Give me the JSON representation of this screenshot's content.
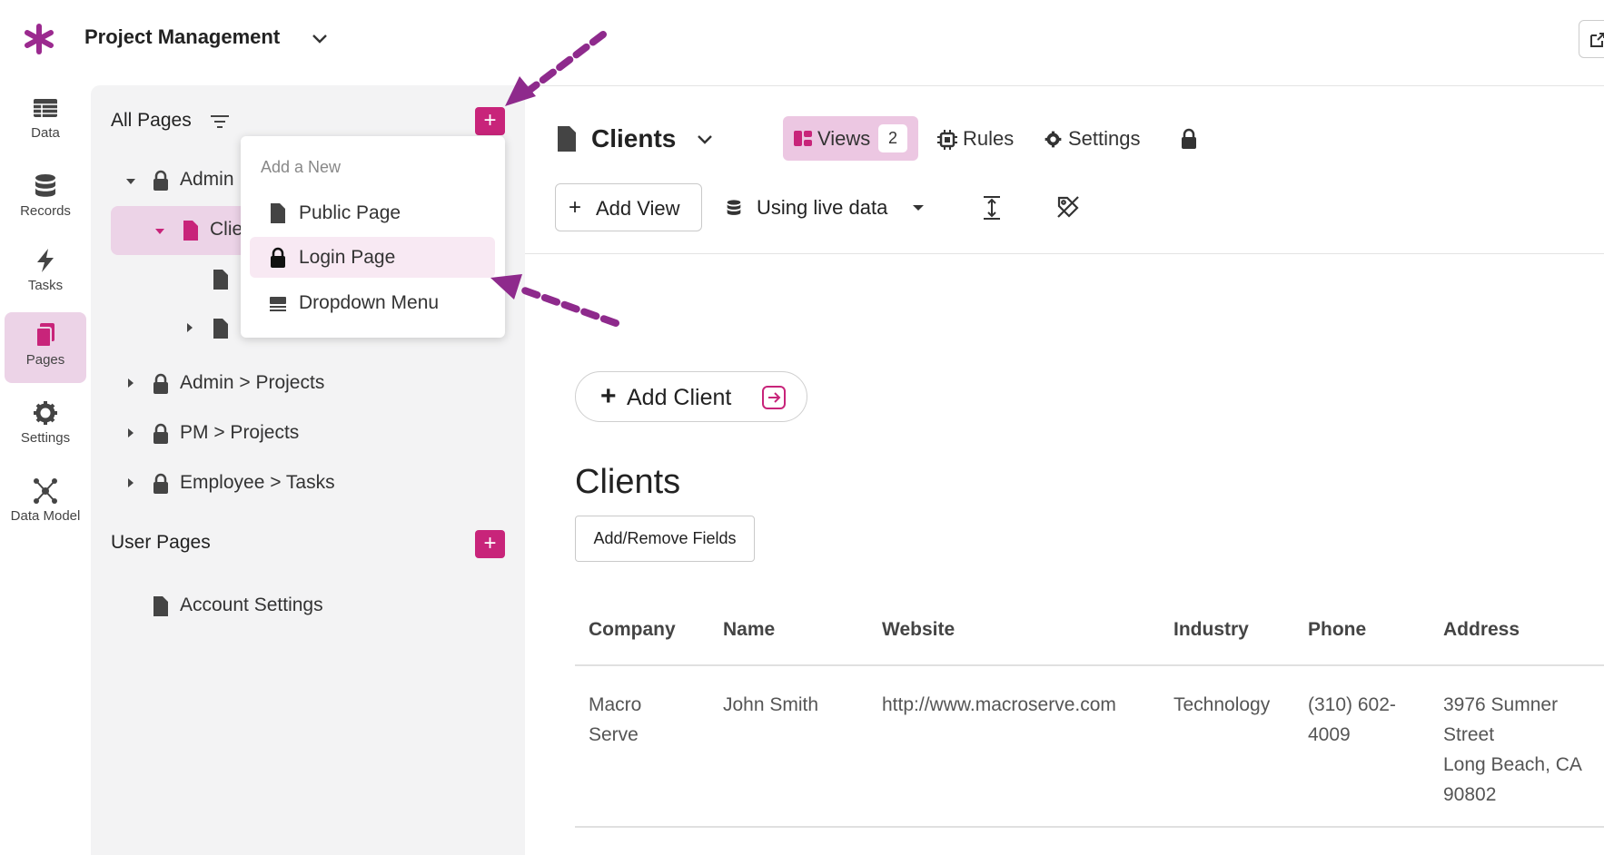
{
  "app": {
    "title": "Project Management"
  },
  "rail": [
    {
      "label": "Data",
      "icon": "table-icon"
    },
    {
      "label": "Records",
      "icon": "database-icon"
    },
    {
      "label": "Tasks",
      "icon": "bolt-icon"
    },
    {
      "label": "Pages",
      "icon": "pages-icon",
      "active": true
    },
    {
      "label": "Settings",
      "icon": "gear-icon"
    },
    {
      "label": "Data Model",
      "icon": "network-icon"
    }
  ],
  "pages_panel": {
    "all_pages_label": "All Pages",
    "tree": [
      {
        "label": "Admin",
        "expanded": true
      },
      {
        "label": "Clie",
        "selected": true
      },
      {
        "label": ""
      },
      {
        "label": ""
      },
      {
        "label": "Admin > Projects"
      },
      {
        "label": "PM > Projects"
      },
      {
        "label": "Employee > Tasks"
      }
    ],
    "user_pages_label": "User Pages",
    "user_pages": [
      {
        "label": "Account Settings"
      }
    ]
  },
  "dropdown": {
    "header": "Add a New",
    "items": [
      {
        "label": "Public Page",
        "icon": "page-icon"
      },
      {
        "label": "Login Page",
        "icon": "lock-icon",
        "highlighted": true
      },
      {
        "label": "Dropdown Menu",
        "icon": "menu-icon"
      }
    ]
  },
  "main": {
    "page_title": "Clients",
    "tabs": {
      "views": "Views",
      "views_count": "2",
      "rules": "Rules",
      "settings": "Settings"
    },
    "toolbar": {
      "add_view": "Add View",
      "data_source": "Using live data"
    },
    "add_client": "Add Client",
    "section_title": "Clients",
    "fields_button": "Add/Remove Fields",
    "table": {
      "headers": [
        "Company",
        "Name",
        "Website",
        "Industry",
        "Phone",
        "Address"
      ],
      "rows": [
        [
          "Macro\nServe",
          "John Smith",
          "http://www.macroserve.com",
          "Technology",
          "(310) 602-\n4009",
          "3976 Sumner\nStreet\nLong Beach, CA\n90802"
        ]
      ]
    }
  },
  "colors": {
    "accent": "#c8247a",
    "accent_light": "#ecd3e7",
    "arrow": "#8e2a8c"
  }
}
